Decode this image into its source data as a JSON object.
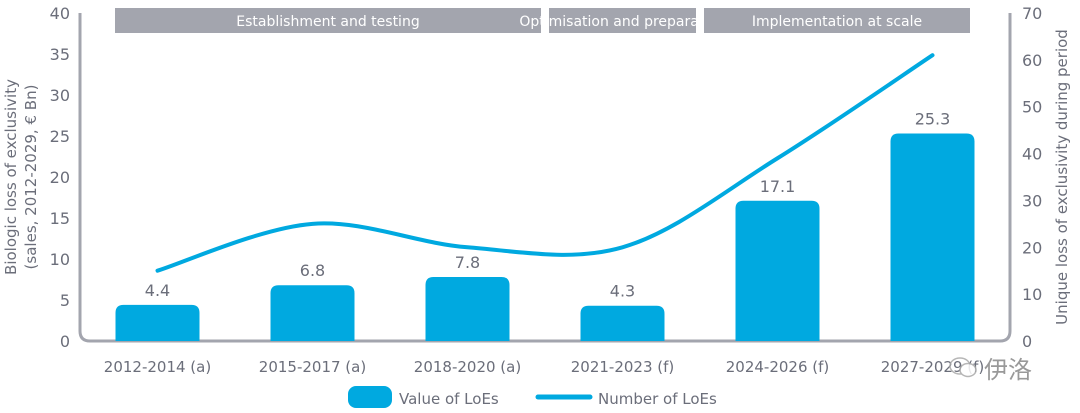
{
  "chart_data": {
    "type": "bar+line",
    "categories": [
      "2012-2014 (a)",
      "2015-2017 (a)",
      "2018-2020 (a)",
      "2021-2023 (f)",
      "2024-2026 (f)",
      "2027-2029 (f)"
    ],
    "series": [
      {
        "name": "Value of LoEs",
        "type": "bar",
        "axis": "left",
        "values": [
          4.4,
          6.8,
          7.8,
          4.3,
          17.1,
          25.3
        ],
        "labels": [
          "4.4",
          "6.8",
          "7.8",
          "4.3",
          "17.1",
          "25.3"
        ]
      },
      {
        "name": "Number of LoEs",
        "type": "line",
        "axis": "right",
        "smooth": true,
        "values": [
          15,
          25,
          20,
          20,
          39,
          61
        ]
      }
    ],
    "ylabel": "Biologic loss of exclusivity\n(sales, 2012-2029, € Bn)",
    "ylabel_lines": [
      "Biologic loss of exclusivity",
      "(sales, 2012-2029, € Bn)"
    ],
    "y2label": "Unique loss of exclusivity during period",
    "ylim": [
      0,
      40
    ],
    "y2lim": [
      0,
      70
    ],
    "yticks": [
      "0",
      "5",
      "10",
      "15",
      "20",
      "25",
      "30",
      "35",
      "40"
    ],
    "y2ticks": [
      "0",
      "10",
      "20",
      "30",
      "40",
      "50",
      "60",
      "70"
    ],
    "phases": [
      {
        "label": "Establishment and testing",
        "from": 0,
        "to": 2
      },
      {
        "label": "Optimisation and preparation",
        "from": 3,
        "to": 3
      },
      {
        "label": "Implementation at scale",
        "from": 4,
        "to": 5
      }
    ],
    "legend": {
      "position": "bottom",
      "entries": [
        "Value of LoEs",
        "Number of LoEs"
      ]
    },
    "grid": false,
    "colors": {
      "bar": "#00a9e0",
      "line": "#00a9e0",
      "axis": "#a3a5ae",
      "phase": "#a3a5ae",
      "text": "#6b6e7a"
    }
  },
  "watermark": {
    "text": "伊洛",
    "icon": "wechat-icon"
  }
}
